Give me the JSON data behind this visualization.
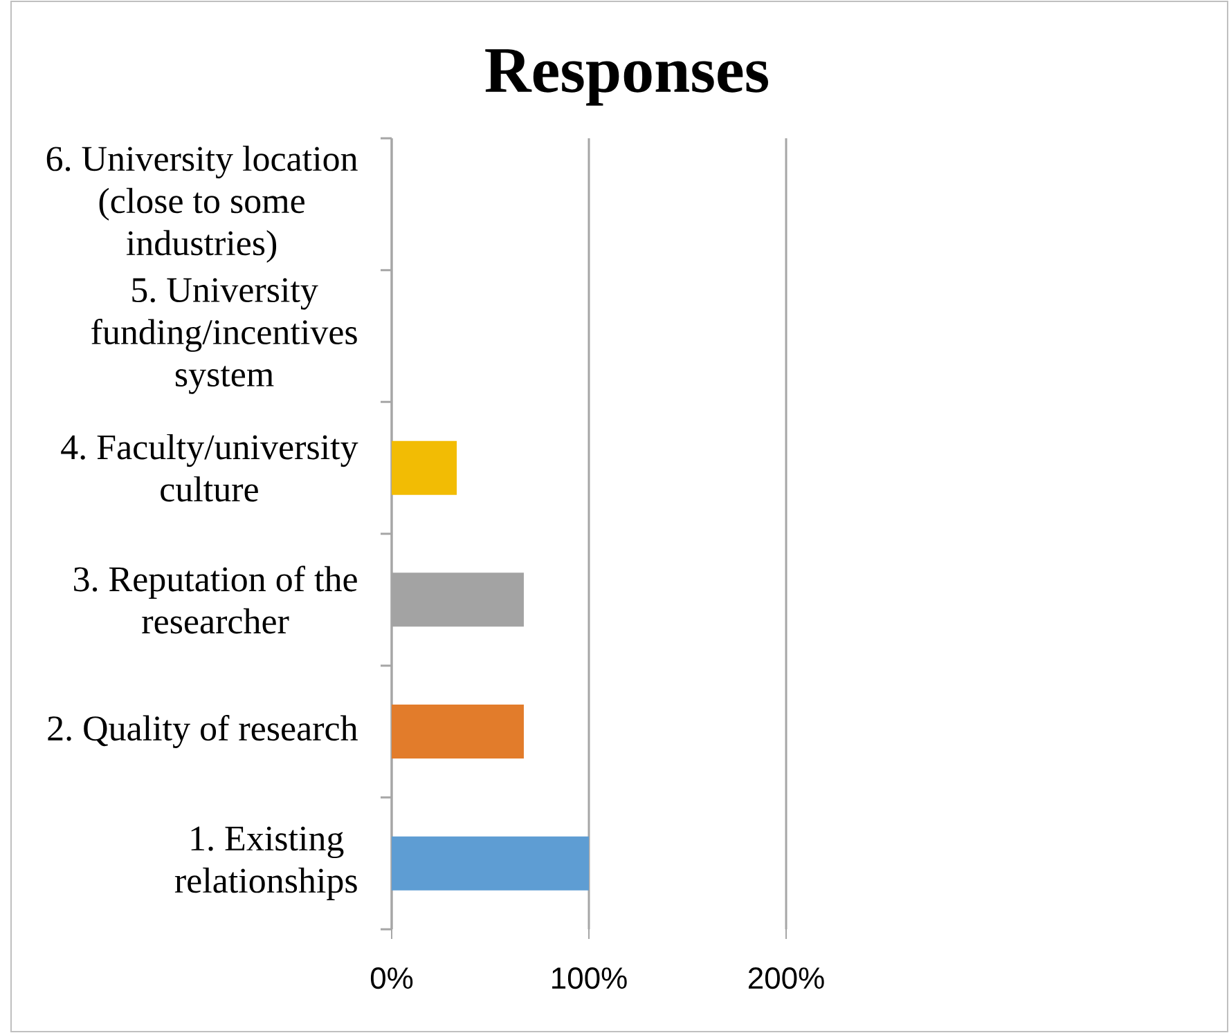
{
  "chart_data": {
    "type": "bar",
    "orientation": "horizontal",
    "title": "Responses",
    "categories": [
      "6. University location (close to some industries)",
      "5. University funding/incentives system",
      "4. Faculty/university culture",
      "3. Reputation of the researcher",
      "2. Quality of research",
      "1. Existing relationships"
    ],
    "values": [
      0,
      0,
      33,
      67,
      67,
      100
    ],
    "colors": [
      "#70ad47",
      "#4472c4",
      "#f2bc04",
      "#a3a3a3",
      "#e27c2b",
      "#5e9dd3"
    ],
    "xlim": [
      0,
      200
    ],
    "xticks": [
      {
        "value": 0,
        "label": "0%"
      },
      {
        "value": 100,
        "label": "100%"
      },
      {
        "value": 200,
        "label": "200%"
      }
    ],
    "grid": "x"
  }
}
